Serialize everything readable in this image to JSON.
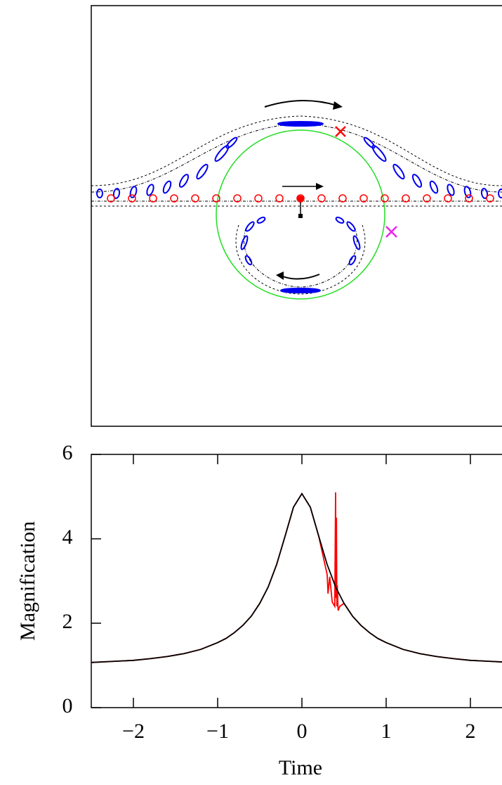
{
  "chart_data": {
    "type": "line",
    "xlabel": "Time",
    "ylabel": "Magnification",
    "xlim": [
      -2.5,
      2.5
    ],
    "ylim": [
      0,
      6
    ],
    "xticks": [
      {
        "value": -2,
        "label": "−2"
      },
      {
        "value": -1,
        "label": "−1"
      },
      0,
      1,
      2
    ],
    "yticks": [
      0,
      2,
      4,
      6
    ],
    "series": [
      {
        "color": "#ff0000",
        "x": [
          -2.5,
          -2.2,
          -2,
          -1.8,
          -1.6,
          -1.4,
          -1.2,
          -1,
          -0.9,
          -0.8,
          -0.7,
          -0.6,
          -0.5,
          -0.4,
          -0.3,
          -0.2,
          -0.1,
          0,
          0.1,
          0.2,
          0.3,
          0.31,
          0.33,
          0.36,
          0.39,
          0.4,
          0.405,
          0.41,
          0.415,
          0.42,
          0.43,
          0.45,
          0.5,
          0.6,
          0.7,
          0.8,
          0.9,
          1,
          1.2,
          1.4,
          1.6,
          1.8,
          2,
          2.2,
          2.5
        ],
        "values": [
          1.07,
          1.1,
          1.12,
          1.16,
          1.21,
          1.28,
          1.38,
          1.54,
          1.64,
          1.78,
          1.95,
          2.17,
          2.47,
          2.86,
          3.39,
          4.06,
          4.75,
          5.07,
          4.75,
          4.06,
          3.15,
          2.7,
          3.1,
          2.5,
          2.4,
          5.1,
          2.6,
          4.5,
          2.4,
          2.9,
          2.3,
          2.4,
          2.47,
          2.17,
          1.95,
          1.78,
          1.64,
          1.54,
          1.38,
          1.28,
          1.21,
          1.16,
          1.12,
          1.1,
          1.07
        ]
      },
      {
        "color": "#000000",
        "x": [
          -2.5,
          -2.2,
          -2,
          -1.8,
          -1.6,
          -1.4,
          -1.2,
          -1,
          -0.9,
          -0.8,
          -0.7,
          -0.6,
          -0.5,
          -0.4,
          -0.3,
          -0.2,
          -0.1,
          0,
          0.1,
          0.2,
          0.3,
          0.4,
          0.5,
          0.6,
          0.7,
          0.8,
          0.9,
          1,
          1.2,
          1.4,
          1.6,
          1.8,
          2,
          2.2,
          2.5
        ],
        "values": [
          1.07,
          1.1,
          1.12,
          1.16,
          1.21,
          1.28,
          1.38,
          1.54,
          1.64,
          1.78,
          1.95,
          2.17,
          2.47,
          2.86,
          3.39,
          4.06,
          4.75,
          5.07,
          4.75,
          4.06,
          3.39,
          2.86,
          2.47,
          2.17,
          1.95,
          1.78,
          1.64,
          1.54,
          1.38,
          1.28,
          1.21,
          1.16,
          1.12,
          1.1,
          1.07
        ]
      }
    ]
  }
}
